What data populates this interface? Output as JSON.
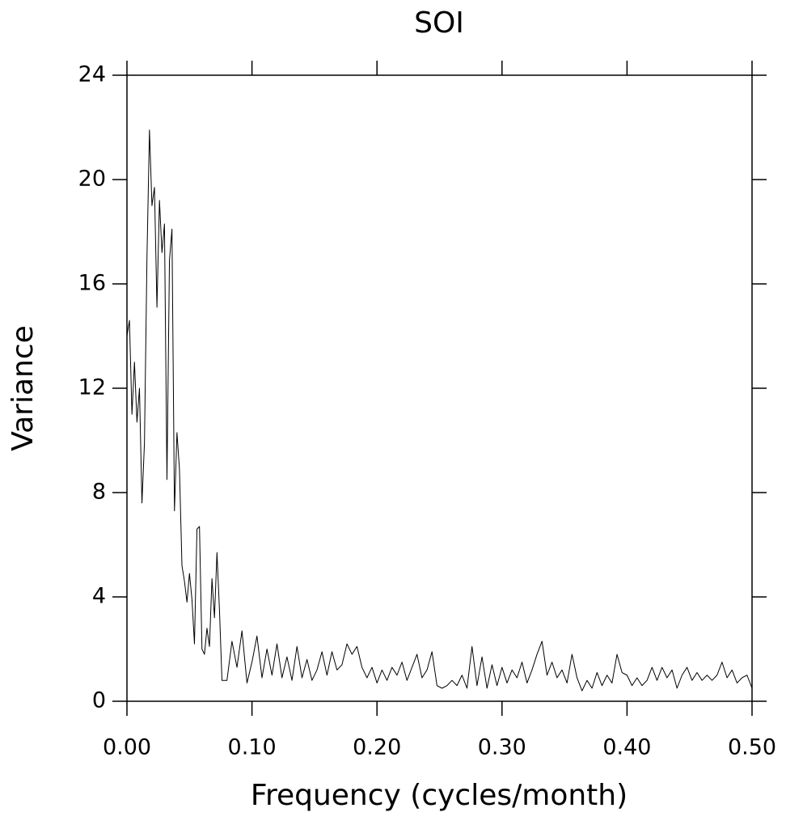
{
  "chart_data": {
    "type": "line",
    "title": "SOI",
    "x_label": "Frequency (cycles/month)",
    "y_label": "Variance",
    "x": [
      0.0,
      0.002,
      0.004,
      0.006,
      0.008,
      0.01,
      0.012,
      0.014,
      0.016,
      0.018,
      0.02,
      0.022,
      0.024,
      0.026,
      0.028,
      0.03,
      0.032,
      0.034,
      0.036,
      0.038,
      0.04,
      0.042,
      0.044,
      0.046,
      0.048,
      0.05,
      0.052,
      0.054,
      0.056,
      0.058,
      0.06,
      0.062,
      0.064,
      0.066,
      0.068,
      0.07,
      0.072,
      0.074,
      0.076,
      0.08,
      0.084,
      0.088,
      0.092,
      0.096,
      0.1,
      0.104,
      0.108,
      0.112,
      0.116,
      0.12,
      0.124,
      0.128,
      0.132,
      0.136,
      0.14,
      0.144,
      0.148,
      0.152,
      0.156,
      0.16,
      0.164,
      0.168,
      0.172,
      0.176,
      0.18,
      0.184,
      0.188,
      0.192,
      0.196,
      0.2,
      0.204,
      0.208,
      0.212,
      0.216,
      0.22,
      0.224,
      0.228,
      0.232,
      0.236,
      0.24,
      0.244,
      0.248,
      0.252,
      0.256,
      0.26,
      0.264,
      0.268,
      0.272,
      0.276,
      0.28,
      0.284,
      0.288,
      0.292,
      0.296,
      0.3,
      0.304,
      0.308,
      0.312,
      0.316,
      0.32,
      0.324,
      0.328,
      0.332,
      0.336,
      0.34,
      0.344,
      0.348,
      0.352,
      0.356,
      0.36,
      0.364,
      0.368,
      0.372,
      0.376,
      0.38,
      0.384,
      0.388,
      0.392,
      0.396,
      0.4,
      0.404,
      0.408,
      0.412,
      0.416,
      0.42,
      0.424,
      0.428,
      0.432,
      0.436,
      0.44,
      0.444,
      0.448,
      0.452,
      0.456,
      0.46,
      0.464,
      0.468,
      0.472,
      0.476,
      0.48,
      0.484,
      0.488,
      0.492,
      0.496,
      0.5
    ],
    "values": [
      14.0,
      14.6,
      11.0,
      13.0,
      10.7,
      12.0,
      7.6,
      9.9,
      17.0,
      21.9,
      19.0,
      19.7,
      15.1,
      19.2,
      17.2,
      18.3,
      8.5,
      16.9,
      18.1,
      7.3,
      10.3,
      8.9,
      5.2,
      4.6,
      3.8,
      4.9,
      3.9,
      2.2,
      6.6,
      6.7,
      2.0,
      1.8,
      2.8,
      2.1,
      4.7,
      3.2,
      5.7,
      3.5,
      0.8,
      0.8,
      2.3,
      1.3,
      2.7,
      0.7,
      1.5,
      2.5,
      0.9,
      2.0,
      1.0,
      2.2,
      0.9,
      1.7,
      0.8,
      2.1,
      0.9,
      1.6,
      0.8,
      1.2,
      1.9,
      1.0,
      1.9,
      1.2,
      1.4,
      2.2,
      1.8,
      2.1,
      1.3,
      0.9,
      1.3,
      0.7,
      1.2,
      0.8,
      1.3,
      1.0,
      1.5,
      0.8,
      1.3,
      1.8,
      0.9,
      1.2,
      1.9,
      0.6,
      0.5,
      0.6,
      0.8,
      0.6,
      1.0,
      0.5,
      2.1,
      0.6,
      1.7,
      0.5,
      1.4,
      0.6,
      1.3,
      0.7,
      1.2,
      0.9,
      1.5,
      0.7,
      1.2,
      1.8,
      2.3,
      1.0,
      1.5,
      0.9,
      1.2,
      0.7,
      1.8,
      0.9,
      0.4,
      0.8,
      0.5,
      1.1,
      0.6,
      1.0,
      0.7,
      1.8,
      1.1,
      1.0,
      0.6,
      0.9,
      0.6,
      0.8,
      1.3,
      0.8,
      1.3,
      0.9,
      1.2,
      0.5,
      1.0,
      1.3,
      0.8,
      1.1,
      0.8,
      1.0,
      0.8,
      1.0,
      1.5,
      0.9,
      1.2,
      0.7,
      0.9,
      1.0,
      0.5
    ],
    "color": "#000000",
    "xlim": [
      0,
      0.5
    ],
    "xticks": [
      {
        "value": 0,
        "label": "0.00"
      },
      {
        "value": 0.1,
        "label": "0.10"
      },
      {
        "value": 0.2,
        "label": "0.20"
      },
      {
        "value": 0.3,
        "label": "0.30"
      },
      {
        "value": 0.4,
        "label": "0.40"
      },
      {
        "value": 0.5,
        "label": "0.50"
      }
    ],
    "ylim": [
      0,
      24
    ],
    "yticks": [
      0,
      4,
      8,
      12,
      16,
      20,
      24
    ],
    "grid": false
  }
}
